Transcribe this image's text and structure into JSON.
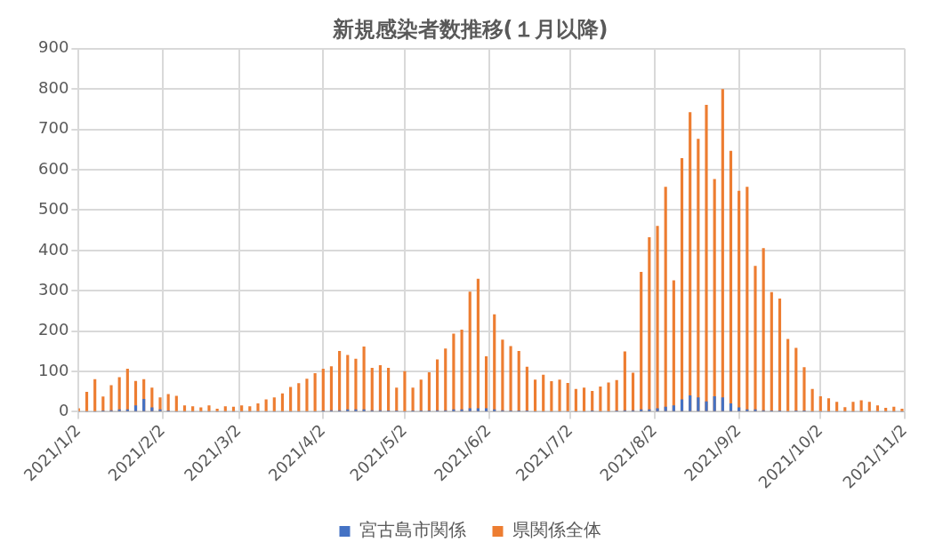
{
  "chart_data": {
    "type": "bar",
    "title": "新規感染者数推移(１月以降)",
    "x": [
      "2021-01-02",
      "2021-01-05",
      "2021-01-08",
      "2021-01-11",
      "2021-01-14",
      "2021-01-17",
      "2021-01-20",
      "2021-01-23",
      "2021-01-26",
      "2021-01-29",
      "2021-02-01",
      "2021-02-04",
      "2021-02-07",
      "2021-02-10",
      "2021-02-13",
      "2021-02-16",
      "2021-02-19",
      "2021-02-22",
      "2021-02-25",
      "2021-02-28",
      "2021-03-03",
      "2021-03-06",
      "2021-03-09",
      "2021-03-12",
      "2021-03-15",
      "2021-03-18",
      "2021-03-21",
      "2021-03-24",
      "2021-03-27",
      "2021-03-30",
      "2021-04-02",
      "2021-04-05",
      "2021-04-08",
      "2021-04-11",
      "2021-04-14",
      "2021-04-17",
      "2021-04-20",
      "2021-04-23",
      "2021-04-26",
      "2021-04-29",
      "2021-05-02",
      "2021-05-05",
      "2021-05-08",
      "2021-05-11",
      "2021-05-14",
      "2021-05-17",
      "2021-05-20",
      "2021-05-23",
      "2021-05-26",
      "2021-05-29",
      "2021-06-01",
      "2021-06-04",
      "2021-06-07",
      "2021-06-10",
      "2021-06-13",
      "2021-06-16",
      "2021-06-19",
      "2021-06-22",
      "2021-06-25",
      "2021-06-28",
      "2021-07-01",
      "2021-07-04",
      "2021-07-07",
      "2021-07-10",
      "2021-07-13",
      "2021-07-16",
      "2021-07-19",
      "2021-07-22",
      "2021-07-25",
      "2021-07-28",
      "2021-07-31",
      "2021-08-03",
      "2021-08-06",
      "2021-08-09",
      "2021-08-12",
      "2021-08-15",
      "2021-08-18",
      "2021-08-21",
      "2021-08-24",
      "2021-08-27",
      "2021-08-30",
      "2021-09-02",
      "2021-09-05",
      "2021-09-08",
      "2021-09-11",
      "2021-09-14",
      "2021-09-17",
      "2021-09-20",
      "2021-09-23",
      "2021-09-26",
      "2021-09-29",
      "2021-10-02",
      "2021-10-05",
      "2021-10-08",
      "2021-10-11",
      "2021-10-14",
      "2021-10-17",
      "2021-10-20",
      "2021-10-23",
      "2021-10-26",
      "2021-10-29",
      "2021-11-01"
    ],
    "series": [
      {
        "name": "宮古島市関係",
        "color": "#4472c4",
        "values": [
          0,
          0,
          0,
          2,
          3,
          5,
          5,
          15,
          31,
          10,
          5,
          2,
          0,
          0,
          0,
          0,
          0,
          0,
          0,
          0,
          0,
          0,
          0,
          0,
          0,
          0,
          0,
          0,
          0,
          0,
          2,
          3,
          3,
          5,
          5,
          5,
          3,
          3,
          2,
          2,
          0,
          2,
          2,
          2,
          3,
          3,
          5,
          5,
          8,
          8,
          8,
          5,
          3,
          2,
          2,
          2,
          0,
          0,
          0,
          0,
          0,
          0,
          0,
          2,
          0,
          0,
          2,
          3,
          3,
          5,
          5,
          8,
          12,
          15,
          30,
          40,
          35,
          25,
          38,
          35,
          20,
          10,
          5,
          5,
          3,
          2,
          2,
          0,
          2,
          2,
          0,
          0,
          0,
          0,
          0,
          0,
          0,
          0,
          0,
          0,
          0,
          0
        ]
      },
      {
        "name": "県関係全体",
        "color": "#ed7d31",
        "values": [
          8,
          49,
          80,
          37,
          65,
          85,
          106,
          76,
          80,
          59,
          35,
          43,
          39,
          15,
          13,
          10,
          15,
          7,
          13,
          12,
          15,
          13,
          20,
          30,
          35,
          45,
          61,
          70,
          81,
          95,
          106,
          112,
          150,
          140,
          131,
          161,
          108,
          115,
          108,
          59,
          100,
          59,
          79,
          97,
          129,
          156,
          193,
          203,
          297,
          329,
          137,
          241,
          178,
          162,
          150,
          111,
          79,
          91,
          75,
          79,
          71,
          56,
          59,
          51,
          62,
          72,
          78,
          149,
          96,
          346,
          432,
          460,
          557,
          325,
          628,
          742,
          676,
          760,
          576,
          799,
          646,
          547,
          557,
          361,
          405,
          296,
          280,
          180,
          158,
          110,
          56,
          38,
          33,
          24,
          11,
          24,
          28,
          24,
          15,
          9,
          12,
          7
        ]
      }
    ],
    "xlim": [
      "2021-01-02",
      "2021-11-02"
    ],
    "xticks": [
      {
        "value": "2021-01-02",
        "label": "2021/1/2"
      },
      {
        "value": "2021-02-02",
        "label": "2021/2/2"
      },
      {
        "value": "2021-03-02",
        "label": "2021/3/2"
      },
      {
        "value": "2021-04-02",
        "label": "2021/4/2"
      },
      {
        "value": "2021-05-02",
        "label": "2021/5/2"
      },
      {
        "value": "2021-06-02",
        "label": "2021/6/2"
      },
      {
        "value": "2021-07-02",
        "label": "2021/7/2"
      },
      {
        "value": "2021-08-02",
        "label": "2021/8/2"
      },
      {
        "value": "2021-09-02",
        "label": "2021/9/2"
      },
      {
        "value": "2021-10-02",
        "label": "2021/10/2"
      },
      {
        "value": "2021-11-02",
        "label": "2021/11/2"
      }
    ],
    "ylim": [
      0,
      900
    ],
    "yticks": [
      0,
      100,
      200,
      300,
      400,
      500,
      600,
      700,
      800,
      900
    ],
    "grid": true,
    "legend": "bottom"
  }
}
